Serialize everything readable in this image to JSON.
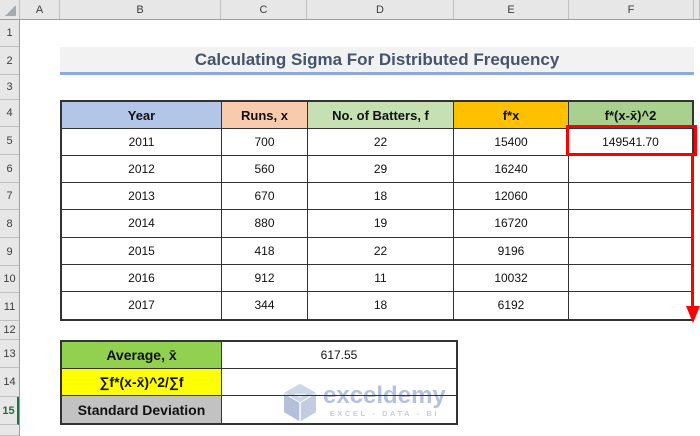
{
  "title": "Calculating Sigma For Distributed Frequency",
  "spreadsheet": {
    "column_letters": [
      "A",
      "B",
      "C",
      "D",
      "E",
      "F"
    ],
    "row_numbers": [
      "1",
      "2",
      "3",
      "4",
      "5",
      "6",
      "7",
      "8",
      "9",
      "10",
      "11",
      "12",
      "13",
      "14",
      "15"
    ],
    "active_row": "15"
  },
  "table": {
    "headers": [
      {
        "label": "Year",
        "fill": "#B4C6E7"
      },
      {
        "label": "Runs, x",
        "fill": "#F8CBAD"
      },
      {
        "label": "No. of Batters, f",
        "fill": "#C6E0B4"
      },
      {
        "label": "f*x",
        "fill": "#FFC000"
      },
      {
        "label": "f*(x-x̄)^2",
        "fill": "#A9D08E"
      }
    ],
    "rows": [
      [
        "2011",
        "700",
        "22",
        "15400",
        "149541.70"
      ],
      [
        "2012",
        "560",
        "29",
        "16240",
        ""
      ],
      [
        "2013",
        "670",
        "18",
        "12060",
        ""
      ],
      [
        "2014",
        "880",
        "19",
        "16720",
        ""
      ],
      [
        "2015",
        "418",
        "22",
        "9196",
        ""
      ],
      [
        "2016",
        "912",
        "11",
        "10032",
        ""
      ],
      [
        "2017",
        "344",
        "18",
        "6192",
        ""
      ]
    ]
  },
  "summary": {
    "rows": [
      {
        "label": "Average, x̄",
        "value": "617.55",
        "fill": "#92D050"
      },
      {
        "label": "∑f*(x-x̄)^2/∑f",
        "value": "",
        "fill": "#FFFF00"
      },
      {
        "label": "Standard Deviation",
        "value": "",
        "fill": "#C2C2C2"
      }
    ]
  },
  "annotation": {
    "highlighted_value": "149541.70",
    "color": "#FF0000"
  },
  "colors": {
    "title_text": "#44546A",
    "title_underline": "#8EAADB",
    "table_border": "#333333",
    "watermark": "#B5C1DE"
  },
  "watermark": {
    "brand": "exceldemy",
    "tagline": "EXCEL - DATA - BI"
  }
}
